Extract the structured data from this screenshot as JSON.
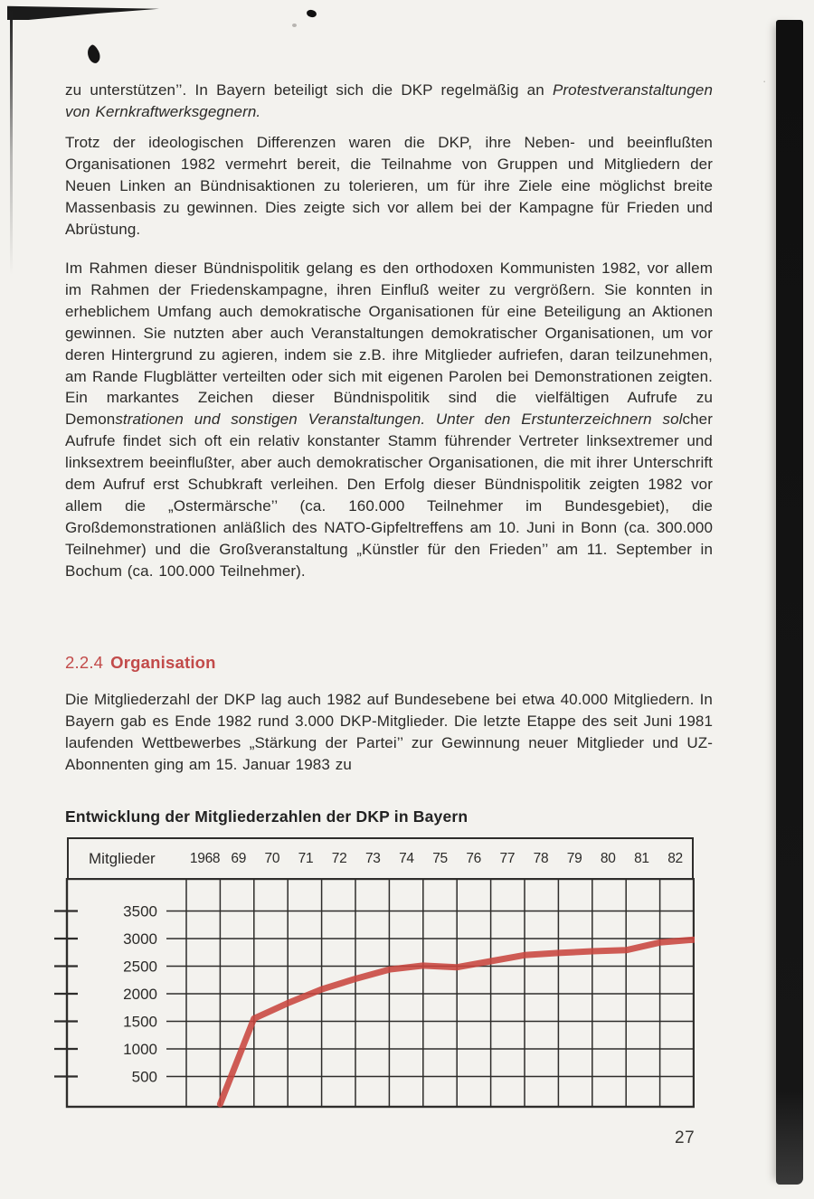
{
  "page": {
    "number": "27"
  },
  "section": {
    "number": "2.2.4",
    "title": "Organisation"
  },
  "colors": {
    "heading_red": "#c24b4a",
    "line_red": "#c8463f",
    "grid": "#2e2d2b",
    "text": "#2b2a28"
  },
  "paragraphs": [
    {
      "segments": [
        {
          "text": "zu unterstützen’’. In Bayern beteiligt sich die DKP regelmäßig an ",
          "italic": false
        },
        {
          "text": "Protestveranstaltungen von Kernkraftwerksgegnern.",
          "italic": true
        }
      ]
    },
    {
      "segments": [
        {
          "text": "Trotz der ideologischen Differenzen waren die DKP, ihre Neben- und beeinflußten Organisationen 1982 vermehrt bereit, die Teilnahme von Gruppen und Mitgliedern der Neuen Linken an Bündnisaktionen zu tolerieren, um für ihre Ziele eine möglichst breite Massenbasis zu gewinnen. Dies zeigte sich vor allem bei der Kampagne für Frieden und Abrüstung.",
          "italic": false
        }
      ]
    },
    {
      "segments": [
        {
          "text": "Im Rahmen dieser Bündnispolitik gelang es den orthodoxen Kommunisten 1982, vor allem im Rahmen der Friedenskampagne, ihren Einfluß weiter zu vergrößern. Sie konnten in erheblichem Umfang auch demokratische Organisationen für eine Beteiligung an Aktionen gewinnen. Sie nutzten aber auch Veranstaltungen demokratischer Organisationen, um vor deren Hintergrund zu agieren, indem sie z.B. ihre Mitglieder aufriefen, daran teilzunehmen, am Rande Flugblätter verteilten oder sich mit eigenen Parolen bei Demonstrationen zeigten. Ein markantes Zeichen dieser Bündnispolitik sind die vielfältigen Aufrufe zu Demon",
          "italic": false
        },
        {
          "text": "strationen und sonstigen Veranstaltungen. Unter den Erstunterzeichnern sol",
          "italic": true
        },
        {
          "text": "cher Aufrufe findet sich oft ein relativ konstanter Stamm führender Vertreter linksextremer und linksextrem beeinflußter, aber auch demokratischer Organisationen, die mit ihrer Unterschrift dem Aufruf erst Schubkraft verleihen. Den Erfolg dieser Bündnispolitik zeigten 1982 vor allem die „Ostermärsche’’ (ca. 160.000 Teilnehmer im Bundesgebiet), die Großdemonstrationen anläßlich des NATO-Gipfeltreffens am 10. Juni in Bonn (ca. 300.000 Teilnehmer) und die Großveranstaltung „Künstler für den Frieden’’ am 11. September in Bochum (ca. 100.000 Teilnehmer).",
          "italic": false
        }
      ]
    },
    {
      "segments": [
        {
          "text": "Die Mitgliederzahl der DKP lag auch 1982 auf Bundesebene bei etwa 40.000 Mitgliedern. In Bayern gab es Ende 1982 rund 3.000 DKP-Mitglieder. Die letzte Etappe des seit Juni 1981 laufenden Wettbewerbes „Stärkung der Partei’’ zur Gewinnung neuer Mitglieder und UZ-Abonnenten ging am 15. Januar 1983 zu",
          "italic": false
        }
      ]
    }
  ],
  "chart_data": {
    "type": "line",
    "title": "Entwicklung der Mitgliederzahlen der DKP in Bayern",
    "ylabel_header": "Mitglieder",
    "categories": [
      "1968",
      "69",
      "70",
      "71",
      "72",
      "73",
      "74",
      "75",
      "76",
      "77",
      "78",
      "79",
      "80",
      "81",
      "82"
    ],
    "values": [
      0,
      1550,
      1830,
      2080,
      2270,
      2440,
      2510,
      2480,
      2590,
      2700,
      2740,
      2770,
      2790,
      2930,
      2980
    ],
    "yticks": [
      3500,
      3000,
      2500,
      2000,
      1500,
      1000,
      500
    ],
    "ylim": [
      0,
      3900
    ],
    "xlabel": "",
    "ylabel": "",
    "grid": true,
    "legend": "none",
    "line_color": "#c8463f"
  }
}
